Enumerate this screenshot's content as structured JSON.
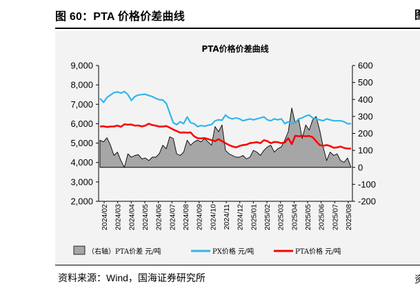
{
  "figure": {
    "title": "图 60：PTA 价格价差曲线",
    "source": "资料来源：Wind，国海证券研究所",
    "edge_top": "图",
    "edge_bottom": "资"
  },
  "chart_data": {
    "type": "line",
    "title": "PTA价格价差曲线",
    "left_axis": {
      "min": 2000,
      "max": 9000,
      "ticks": [
        "2,000",
        "3,000",
        "4,000",
        "5,000",
        "6,000",
        "7,000",
        "8,000",
        "9,000"
      ],
      "tick_values": [
        2000,
        3000,
        4000,
        5000,
        6000,
        7000,
        8000,
        9000
      ]
    },
    "right_axis": {
      "min": -200,
      "max": 600,
      "ticks": [
        "-200",
        "-100",
        "0",
        "100",
        "200",
        "300",
        "400",
        "500",
        "600"
      ],
      "tick_values": [
        -200,
        -100,
        0,
        100,
        200,
        300,
        400,
        500,
        600
      ]
    },
    "x_ticks": [
      "2024/02",
      "2024/03",
      "2024/04",
      "2024/05",
      "2024/06",
      "2024/07",
      "2024/08",
      "2024/09",
      "2024/10",
      "2024/11",
      "2024/12",
      "2025/01",
      "2025/02",
      "2025/03",
      "2025/04",
      "2025/05",
      "2025/06",
      "2025/07",
      "2025/08"
    ],
    "x_range": [
      "2024/02",
      "2025/08"
    ],
    "legend_position": "bottom",
    "colors": {
      "spread": "#a6a6a6",
      "px": "#2fb6ec",
      "pta": "#ff0000"
    },
    "series": [
      {
        "name": "（右轴）PTA价差 元/吨",
        "axis": "right",
        "style": "area",
        "values": [
          160,
          150,
          175,
          130,
          70,
          90,
          40,
          0,
          80,
          60,
          70,
          75,
          50,
          55,
          40,
          60,
          60,
          80,
          130,
          110,
          180,
          170,
          80,
          70,
          90,
          160,
          130,
          150,
          160,
          150,
          170,
          150,
          130,
          240,
          210,
          250,
          100,
          80,
          70,
          60,
          60,
          70,
          50,
          60,
          100,
          90,
          70,
          100,
          120,
          130,
          90,
          110,
          120,
          160,
          210,
          350,
          260,
          280,
          170,
          250,
          220,
          280,
          300,
          220,
          120,
          40,
          90,
          70,
          80,
          40,
          30,
          55,
          0
        ]
      },
      {
        "name": "PX价格 元/吨",
        "axis": "left",
        "style": "line",
        "values": [
          7300,
          7100,
          7350,
          7480,
          7600,
          7640,
          7580,
          7660,
          7500,
          7200,
          7400,
          7480,
          7500,
          7520,
          7450,
          7400,
          7300,
          7240,
          7220,
          7050,
          6560,
          6050,
          5950,
          6100,
          6000,
          6350,
          6050,
          6000,
          5850,
          5900,
          5870,
          5920,
          5960,
          6150,
          6200,
          6180,
          6450,
          6300,
          6250,
          6300,
          6250,
          6150,
          6200,
          6250,
          6200,
          6250,
          6300,
          6350,
          6200,
          6150,
          6250,
          6200,
          6250,
          6000,
          6100,
          6000,
          6050,
          6250,
          6300,
          6400,
          6450,
          6300,
          6250,
          6200,
          6150,
          6250,
          6200,
          6150,
          6150,
          6150,
          6100,
          6000,
          6000
        ]
      },
      {
        "name": "PTA价格 元/吨",
        "axis": "left",
        "style": "line",
        "values": [
          5850,
          5870,
          5830,
          5850,
          5860,
          5900,
          5840,
          5970,
          5950,
          5960,
          5900,
          5910,
          5860,
          5900,
          6000,
          5930,
          5900,
          5850,
          5850,
          5880,
          5800,
          5700,
          5620,
          5540,
          5550,
          5540,
          5550,
          5350,
          5250,
          5240,
          5260,
          5210,
          5150,
          5100,
          5200,
          5100,
          5000,
          4900,
          4830,
          4780,
          4850,
          4900,
          4920,
          5000,
          5020,
          5050,
          5000,
          5150,
          5100,
          5000,
          5060,
          5050,
          5000,
          5030,
          5250,
          4950,
          5380,
          5350,
          5380,
          5350,
          5370,
          5300,
          5100,
          4900,
          4860,
          4900,
          4850,
          4760,
          4780,
          4820,
          4750,
          4720,
          4720
        ]
      }
    ]
  }
}
